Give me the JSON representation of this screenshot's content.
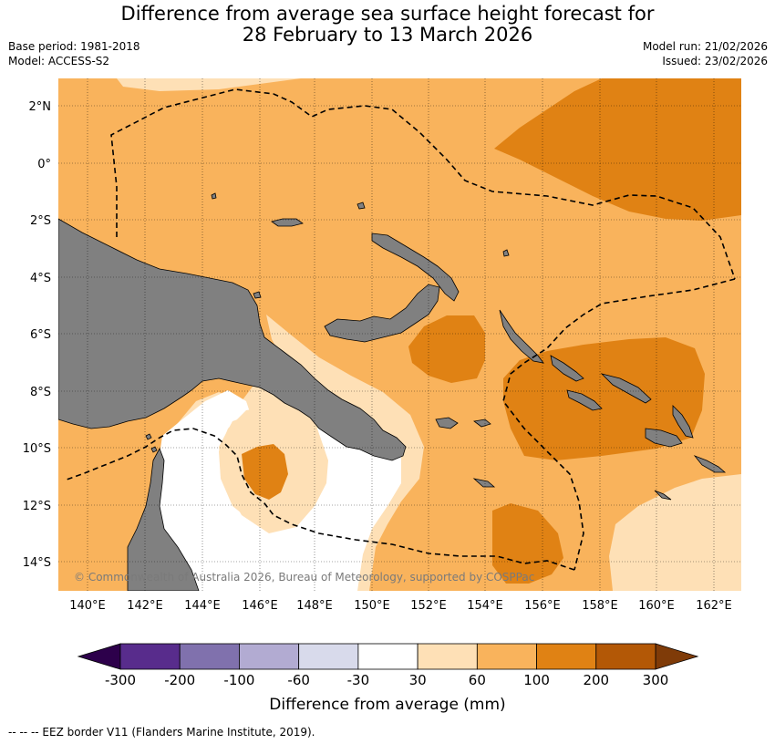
{
  "title_line1": "Difference from average sea surface height forecast for",
  "title_line2": "28 February to 13 March 2026",
  "base_period": "Base period: 1981-2018",
  "model": "Model: ACCESS-S2",
  "model_run": "Model run: 21/02/2026",
  "issued": "Issued: 23/02/2026",
  "copyright": "© Commonwealth of Australia 2026, Bureau of Meteorology, supported by COSPPac",
  "lat_labels": [
    "2°N",
    "0°",
    "2°S",
    "4°S",
    "6°S",
    "8°S",
    "10°S",
    "12°S",
    "14°S"
  ],
  "lon_labels": [
    "140°E",
    "142°E",
    "144°E",
    "146°E",
    "148°E",
    "150°E",
    "152°E",
    "154°E",
    "156°E",
    "158°E",
    "160°E",
    "162°E"
  ],
  "colorbar": {
    "label": "Difference from average (mm)",
    "ticks": [
      "-300",
      "-200",
      "-100",
      "-60",
      "-30",
      "30",
      "60",
      "100",
      "200",
      "300"
    ],
    "colors": [
      "#582c8c",
      "#8071ad",
      "#b2abd2",
      "#d8daeb",
      "#ffffff",
      "#fee0b6",
      "#f9b35c",
      "#e08214",
      "#b35806"
    ],
    "low_extend_color": "#2d004b",
    "high_extend_color": "#7f3b08"
  },
  "colors": {
    "land": "#808080",
    "ocean_base": "#f9b35c",
    "level_30_60": "#fee0b6",
    "level_100_200": "#e08214",
    "level_neg30_30": "#ffffff"
  },
  "footnote": "--  --  -- EEZ border V11 (Flanders Marine Institute, 2019)."
}
